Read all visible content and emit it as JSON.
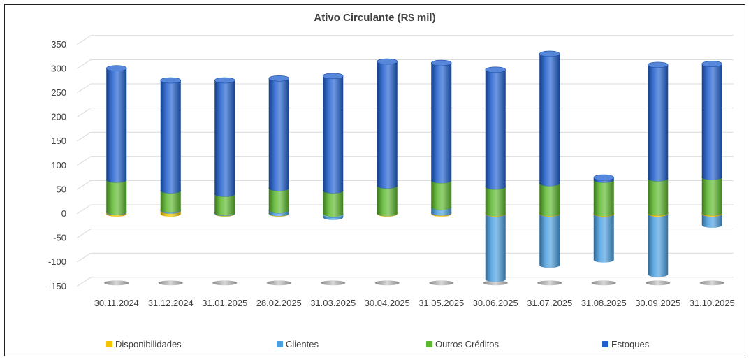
{
  "chart_data": {
    "type": "bar",
    "title": "Ativo Circulante (R$ mil)",
    "categories": [
      "30.11.2024",
      "31.12.2024",
      "31.01.2025",
      "28.02.2025",
      "31.03.2025",
      "30.04.2025",
      "31.05.2025",
      "30.06.2025",
      "31.07.2025",
      "31.08.2025",
      "30.09.2025",
      "31.10.2025"
    ],
    "series": [
      {
        "name": "Disponibilidades",
        "color": "#f5c400",
        "values": [
          3,
          6,
          1,
          1,
          -2,
          1,
          2,
          1,
          1,
          1,
          2,
          2
        ]
      },
      {
        "name": "Clientes",
        "color": "#4a9fe0",
        "values": [
          1,
          2,
          1,
          6,
          -5,
          0,
          12,
          -135,
          -106,
          -95,
          -125,
          -23
        ]
      },
      {
        "name": "Outros Créditos",
        "color": "#5cb82c",
        "values": [
          66,
          40,
          39,
          46,
          48,
          57,
          55,
          55,
          62,
          69,
          71,
          74
        ]
      },
      {
        "name": "Estoques",
        "color": "#1f5fcf",
        "values": [
          231,
          228,
          235,
          227,
          237,
          257,
          243,
          242,
          268,
          5,
          235,
          234
        ]
      }
    ],
    "ylim": [
      -150,
      350
    ],
    "yticks": [
      350,
      300,
      250,
      200,
      150,
      100,
      50,
      0,
      -50,
      -100,
      -150
    ],
    "grid": true,
    "legend_position": "bottom"
  }
}
